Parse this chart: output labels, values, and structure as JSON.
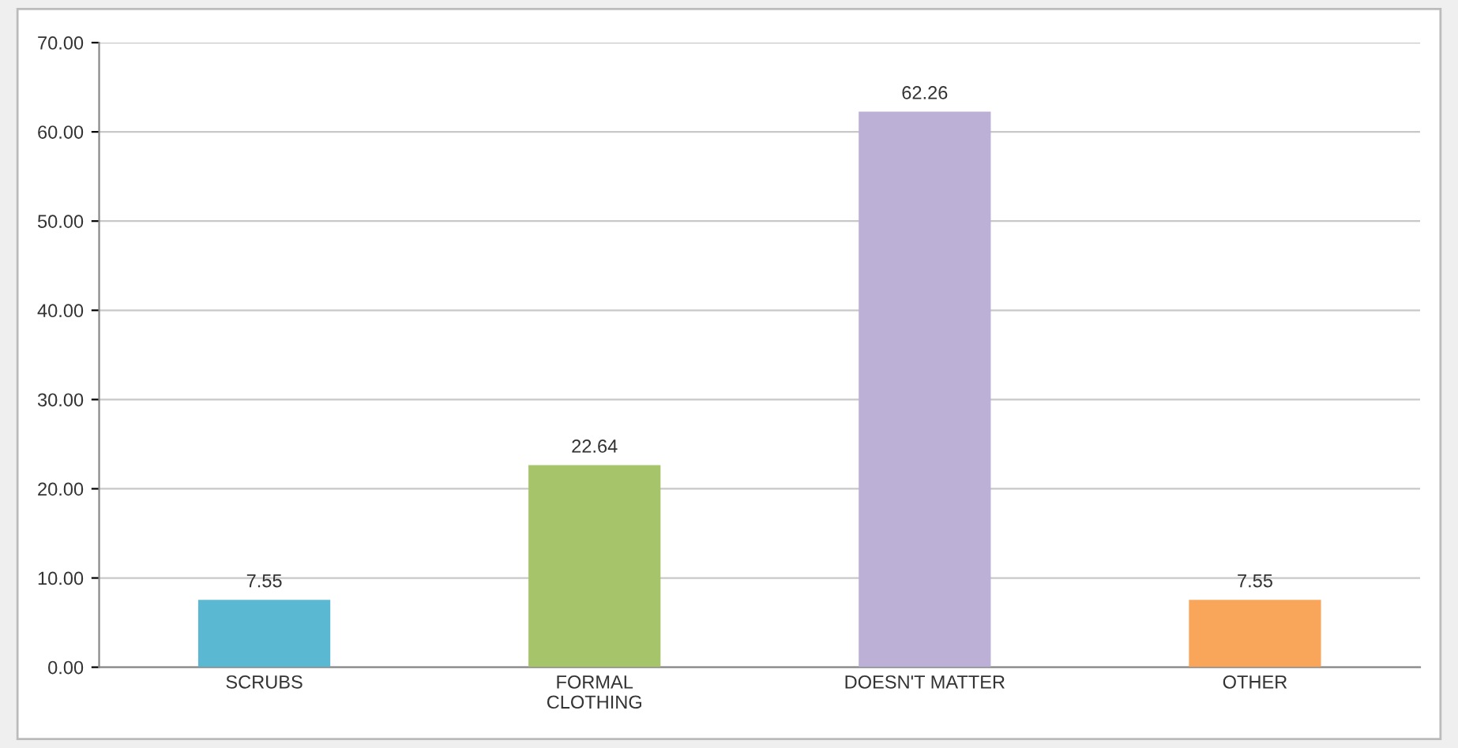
{
  "chart_data": {
    "type": "bar",
    "categories": [
      "SCRUBS",
      "FORMAL\nCLOTHING",
      "DOESN'T MATTER",
      "OTHER"
    ],
    "values": [
      7.55,
      22.64,
      62.26,
      7.55
    ],
    "colors": [
      "#5ab8d2",
      "#a6c56a",
      "#bcb0d6",
      "#f9a65a"
    ],
    "ylim": [
      0,
      70
    ],
    "yticks": [
      {
        "value": 0,
        "label": "0.00"
      },
      {
        "value": 10,
        "label": "10.00"
      },
      {
        "value": 20,
        "label": "20.00"
      },
      {
        "value": 30,
        "label": "30.00"
      },
      {
        "value": 40,
        "label": "40.00"
      },
      {
        "value": 50,
        "label": "50.00"
      },
      {
        "value": 60,
        "label": "60.00"
      },
      {
        "value": 70,
        "label": "70.00"
      }
    ],
    "grid": "y",
    "data_labels": true
  }
}
